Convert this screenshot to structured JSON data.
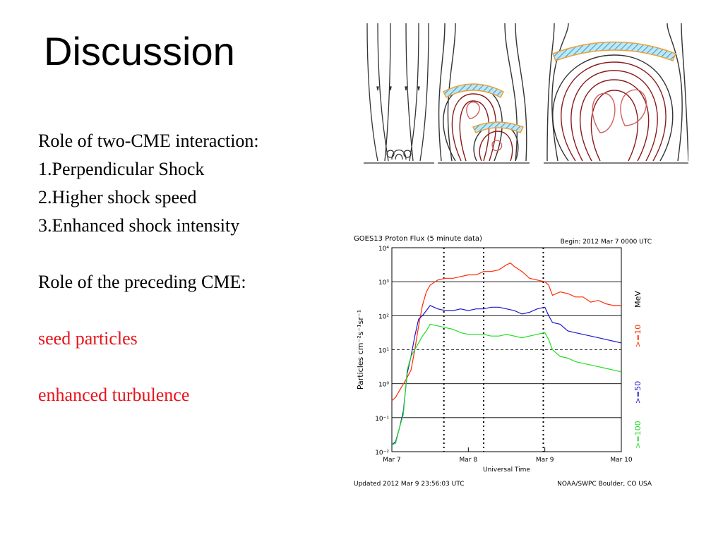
{
  "slide": {
    "title": "Discussion",
    "lines": [
      {
        "text": "Role of  two-CME interaction:",
        "style": "black"
      },
      {
        "text": "1.Perpendicular Shock",
        "style": "black"
      },
      {
        "text": "2.Higher shock speed",
        "style": "black"
      },
      {
        "text": "3.Enhanced shock intensity",
        "style": "black"
      },
      {
        "text": "",
        "style": "black"
      },
      {
        "text": "Role of the preceding CME:",
        "style": "black"
      },
      {
        "text": "",
        "style": "black"
      },
      {
        "text": "seed particles",
        "style": "red"
      },
      {
        "text": "",
        "style": "black"
      },
      {
        "text": "enhanced turbulence",
        "style": "red"
      }
    ]
  },
  "diagram": {
    "colors": {
      "field_line": "#333333",
      "flux_rope": "#8b1a1a",
      "shock": "#4fb3d9",
      "shock_outline": "#f0a030",
      "inner_loop": "#d06060"
    }
  },
  "chart_data": {
    "type": "line",
    "title": "GOES13 Proton Flux (5 minute data)",
    "begin_label": "Begin: 2012 Mar 7 0000 UTC",
    "ylabel": "Particles cm⁻²s⁻¹sr⁻¹",
    "xlabel": "Universal Time",
    "footer_left": "Updated 2012 Mar  9 23:56:03 UTC",
    "footer_right": "NOAA/SWPC Boulder, CO USA",
    "unit_label": "MeV",
    "log_scale": true,
    "ylim_exp": [
      -2,
      4
    ],
    "xlim_days": [
      0,
      3
    ],
    "x_ticks": [
      {
        "day": 0,
        "label": "Mar 7"
      },
      {
        "day": 1,
        "label": "Mar 8"
      },
      {
        "day": 2,
        "label": "Mar 9"
      },
      {
        "day": 3,
        "label": "Mar 10"
      }
    ],
    "y_ticks": [
      {
        "exp": 4,
        "label": "10⁴"
      },
      {
        "exp": 3,
        "label": "10³"
      },
      {
        "exp": 2,
        "label": "10²"
      },
      {
        "exp": 1,
        "label": "10¹"
      },
      {
        "exp": 0,
        "label": "10⁰"
      },
      {
        "exp": -1,
        "label": "10⁻¹"
      },
      {
        "exp": -2,
        "label": "10⁻²"
      }
    ],
    "dashed_threshold_exp": 1,
    "event_markers_days": [
      0.68,
      1.2,
      1.98
    ],
    "series": [
      {
        "name": ">=10",
        "color": "#ff2a00",
        "x": [
          0.0,
          0.05,
          0.1,
          0.18,
          0.25,
          0.3,
          0.35,
          0.4,
          0.45,
          0.5,
          0.6,
          0.7,
          0.8,
          0.9,
          1.0,
          1.1,
          1.2,
          1.3,
          1.4,
          1.5,
          1.55,
          1.6,
          1.7,
          1.8,
          1.9,
          2.0,
          2.05,
          2.1,
          2.2,
          2.3,
          2.4,
          2.5,
          2.6,
          2.7,
          2.8,
          2.9,
          3.0
        ],
        "values": [
          -0.5,
          -0.4,
          -0.2,
          0.1,
          0.4,
          1.0,
          1.7,
          2.3,
          2.7,
          2.9,
          3.05,
          3.1,
          3.1,
          3.15,
          3.2,
          3.2,
          3.3,
          3.3,
          3.35,
          3.5,
          3.55,
          3.45,
          3.3,
          3.1,
          3.05,
          3.0,
          2.9,
          2.6,
          2.7,
          2.65,
          2.55,
          2.55,
          2.4,
          2.45,
          2.35,
          2.3,
          2.3
        ]
      },
      {
        "name": ">=50",
        "color": "#1a1acc",
        "x": [
          0.0,
          0.05,
          0.1,
          0.15,
          0.2,
          0.25,
          0.3,
          0.35,
          0.4,
          0.45,
          0.5,
          0.6,
          0.7,
          0.8,
          0.9,
          1.0,
          1.1,
          1.2,
          1.3,
          1.4,
          1.5,
          1.6,
          1.7,
          1.8,
          1.9,
          2.0,
          2.05,
          2.1,
          2.2,
          2.3,
          2.4,
          2.5,
          2.6,
          2.7,
          2.8,
          2.9,
          3.0
        ],
        "values": [
          -1.8,
          -1.7,
          -1.3,
          -0.8,
          0.3,
          0.8,
          1.4,
          1.9,
          2.0,
          2.15,
          2.3,
          2.2,
          2.15,
          2.15,
          2.2,
          2.15,
          2.2,
          2.2,
          2.25,
          2.25,
          2.2,
          2.15,
          2.05,
          2.1,
          2.2,
          2.25,
          2.0,
          1.8,
          1.75,
          1.55,
          1.5,
          1.45,
          1.4,
          1.35,
          1.3,
          1.25,
          1.2
        ]
      },
      {
        "name": ">=100",
        "color": "#22dd22",
        "x": [
          0.0,
          0.05,
          0.1,
          0.15,
          0.2,
          0.25,
          0.3,
          0.35,
          0.4,
          0.45,
          0.5,
          0.6,
          0.7,
          0.8,
          0.9,
          1.0,
          1.1,
          1.2,
          1.3,
          1.4,
          1.5,
          1.6,
          1.7,
          1.8,
          1.9,
          2.0,
          2.05,
          2.1,
          2.2,
          2.3,
          2.4,
          2.5,
          2.6,
          2.7,
          2.8,
          2.9,
          3.0
        ],
        "values": [
          -1.8,
          -1.75,
          -1.3,
          -0.9,
          0.4,
          0.8,
          1.0,
          1.2,
          1.4,
          1.55,
          1.75,
          1.7,
          1.65,
          1.6,
          1.5,
          1.45,
          1.45,
          1.45,
          1.4,
          1.4,
          1.45,
          1.4,
          1.35,
          1.4,
          1.45,
          1.5,
          1.3,
          1.0,
          0.8,
          0.75,
          0.65,
          0.6,
          0.55,
          0.5,
          0.45,
          0.4,
          0.35
        ]
      }
    ]
  }
}
